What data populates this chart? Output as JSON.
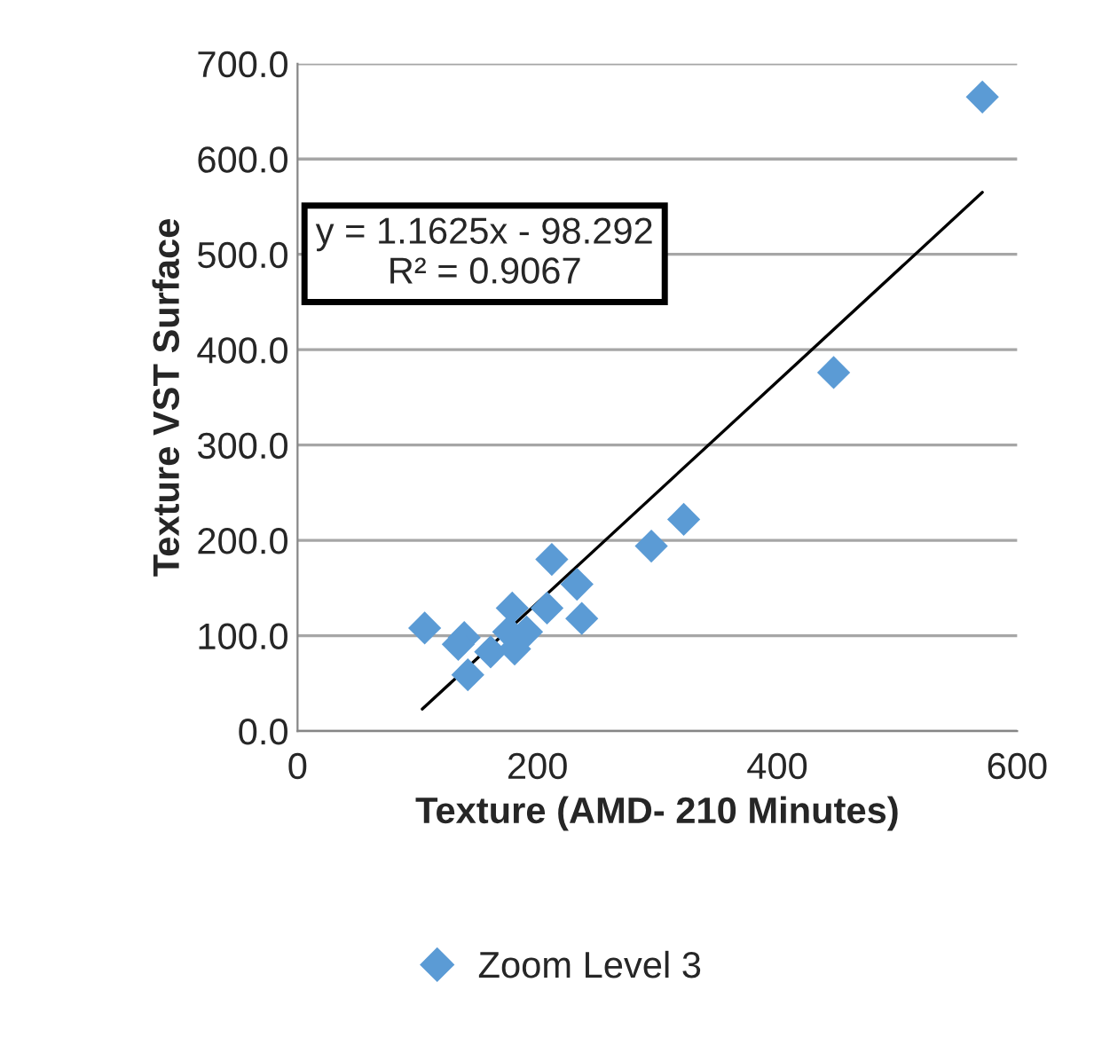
{
  "chart_data": {
    "type": "scatter",
    "xlabel": "Texture (AMD- 210 Minutes)",
    "ylabel": "Texture VST Surface",
    "xlim": [
      0,
      600
    ],
    "xticks": [
      0,
      200,
      400,
      600
    ],
    "ylim": [
      0,
      700
    ],
    "yticks": [
      {
        "value": 0,
        "label": "0.0"
      },
      {
        "value": 100,
        "label": "100.0"
      },
      {
        "value": 200,
        "label": "200.0"
      },
      {
        "value": 300,
        "label": "300.0"
      },
      {
        "value": 400,
        "label": "400.0"
      },
      {
        "value": 500,
        "label": "500.0"
      },
      {
        "value": 600,
        "label": "600.0"
      },
      {
        "value": 700,
        "label": "700.0"
      }
    ],
    "grid": "y",
    "legend": "bottom",
    "annotations": [
      "y = 1.1625x - 98.292\nR² = 0.9067"
    ],
    "series": [
      {
        "name": "Zoom Level 3",
        "color": "#5b9bd5",
        "marker": "diamond",
        "x": [
          106,
          139,
          134,
          142,
          161,
          179,
          176,
          181,
          191,
          208,
          212,
          233,
          237,
          295,
          322,
          447,
          571
        ],
        "values": [
          108,
          98,
          91,
          59,
          83,
          129,
          104,
          86,
          104,
          129,
          180,
          154,
          118,
          194,
          222,
          376,
          665
        ]
      },
      {
        "type": "line",
        "color": "#000000",
        "line_style": "solid",
        "marker": "none",
        "x": [
          104,
          571
        ],
        "values": [
          23,
          565
        ]
      }
    ]
  }
}
